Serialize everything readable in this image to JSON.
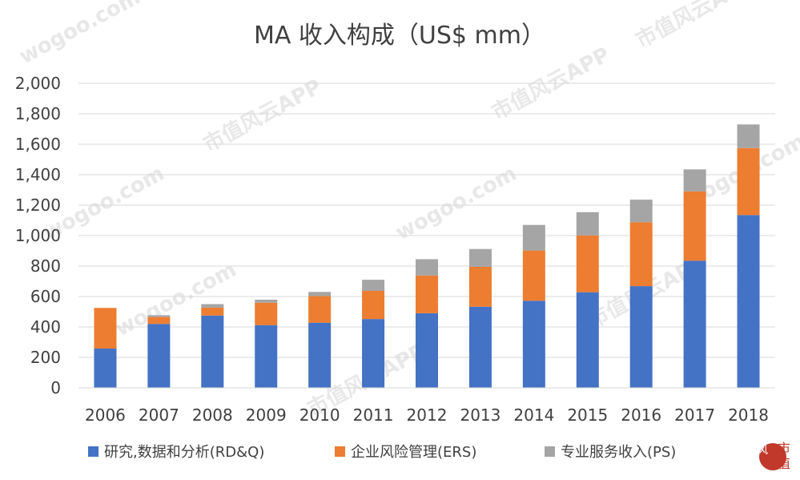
{
  "chart_data": {
    "type": "bar",
    "stacked": true,
    "title": "MA 收入构成（US$ mm）",
    "xlabel": "",
    "ylabel": "",
    "categories": [
      "2006",
      "2007",
      "2008",
      "2009",
      "2010",
      "2011",
      "2012",
      "2013",
      "2014",
      "2015",
      "2016",
      "2017",
      "2018"
    ],
    "ylim": [
      0,
      2000
    ],
    "yticks": [
      0,
      200,
      400,
      600,
      800,
      1000,
      1200,
      1400,
      1600,
      1800,
      2000
    ],
    "ytick_labels": [
      "0",
      "200",
      "400",
      "600",
      "800",
      "1,000",
      "1,200",
      "1,400",
      "1,600",
      "1,800",
      "2,000"
    ],
    "grid": true,
    "legend_position": "bottom",
    "series": [
      {
        "name": "研究,数据和分析(RD&Q)",
        "color": "#4472c4",
        "values": [
          258,
          420,
          475,
          412,
          428,
          452,
          490,
          533,
          572,
          628,
          668,
          835,
          1135
        ]
      },
      {
        "name": "企业风险管理(ERS)",
        "color": "#ed7d31",
        "values": [
          267,
          45,
          52,
          147,
          175,
          185,
          248,
          262,
          330,
          373,
          420,
          455,
          440
        ]
      },
      {
        "name": "专业服务收入(PS)",
        "color": "#a5a5a5",
        "values": [
          0,
          12,
          23,
          20,
          27,
          73,
          107,
          117,
          168,
          153,
          148,
          145,
          155
        ]
      }
    ]
  },
  "watermark": {
    "site_text": "wogoo.com",
    "app_text": "市值风云APP",
    "logo_text_1": "风",
    "logo_text_2": "市",
    "logo_text_3": "值",
    "logo_color": "#c0392b"
  }
}
